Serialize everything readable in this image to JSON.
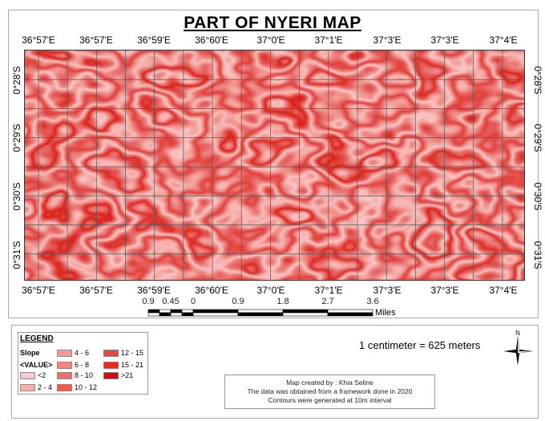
{
  "title": "PART OF NYERI MAP",
  "longitude_labels": [
    "36°57'E",
    "36°57'E",
    "36°59'E",
    "36°60'E",
    "37°0'E",
    "37°1'E",
    "37°3'E",
    "37°3'E",
    "37°4'E"
  ],
  "latitude_labels": [
    "0°28'S",
    "0°29'S",
    "0°30'S",
    "0°31'S"
  ],
  "scale_bar": {
    "labels": [
      "0.9",
      "0.45",
      "0",
      "0.9",
      "1.8",
      "2.7",
      "3.6"
    ],
    "unit": "Miles"
  },
  "legend": {
    "heading": "LEGEND",
    "field": "Slope",
    "value_label": "<VALUE>",
    "classes": [
      {
        "label": "<2",
        "color": "#fcc8c8"
      },
      {
        "label": "2 - 4",
        "color": "#f9b0ac"
      },
      {
        "label": "4 - 6",
        "color": "#f89a94"
      },
      {
        "label": "6 - 8",
        "color": "#f5847c"
      },
      {
        "label": "8 - 10",
        "color": "#f26e64"
      },
      {
        "label": "10 - 12",
        "color": "#ee5a4e"
      },
      {
        "label": "12 - 15",
        "color": "#e9453a"
      },
      {
        "label": "15 - 21",
        "color": "#e32b22"
      },
      {
        "label": ">21",
        "color": "#d80808"
      }
    ]
  },
  "scale_text": "1 centimeter = 625 meters",
  "north_label": "N",
  "credits": [
    "Map created by : Khia Seline",
    "The data was obtained from a framework done in 2020",
    "Contours were generated at 10m interval"
  ]
}
